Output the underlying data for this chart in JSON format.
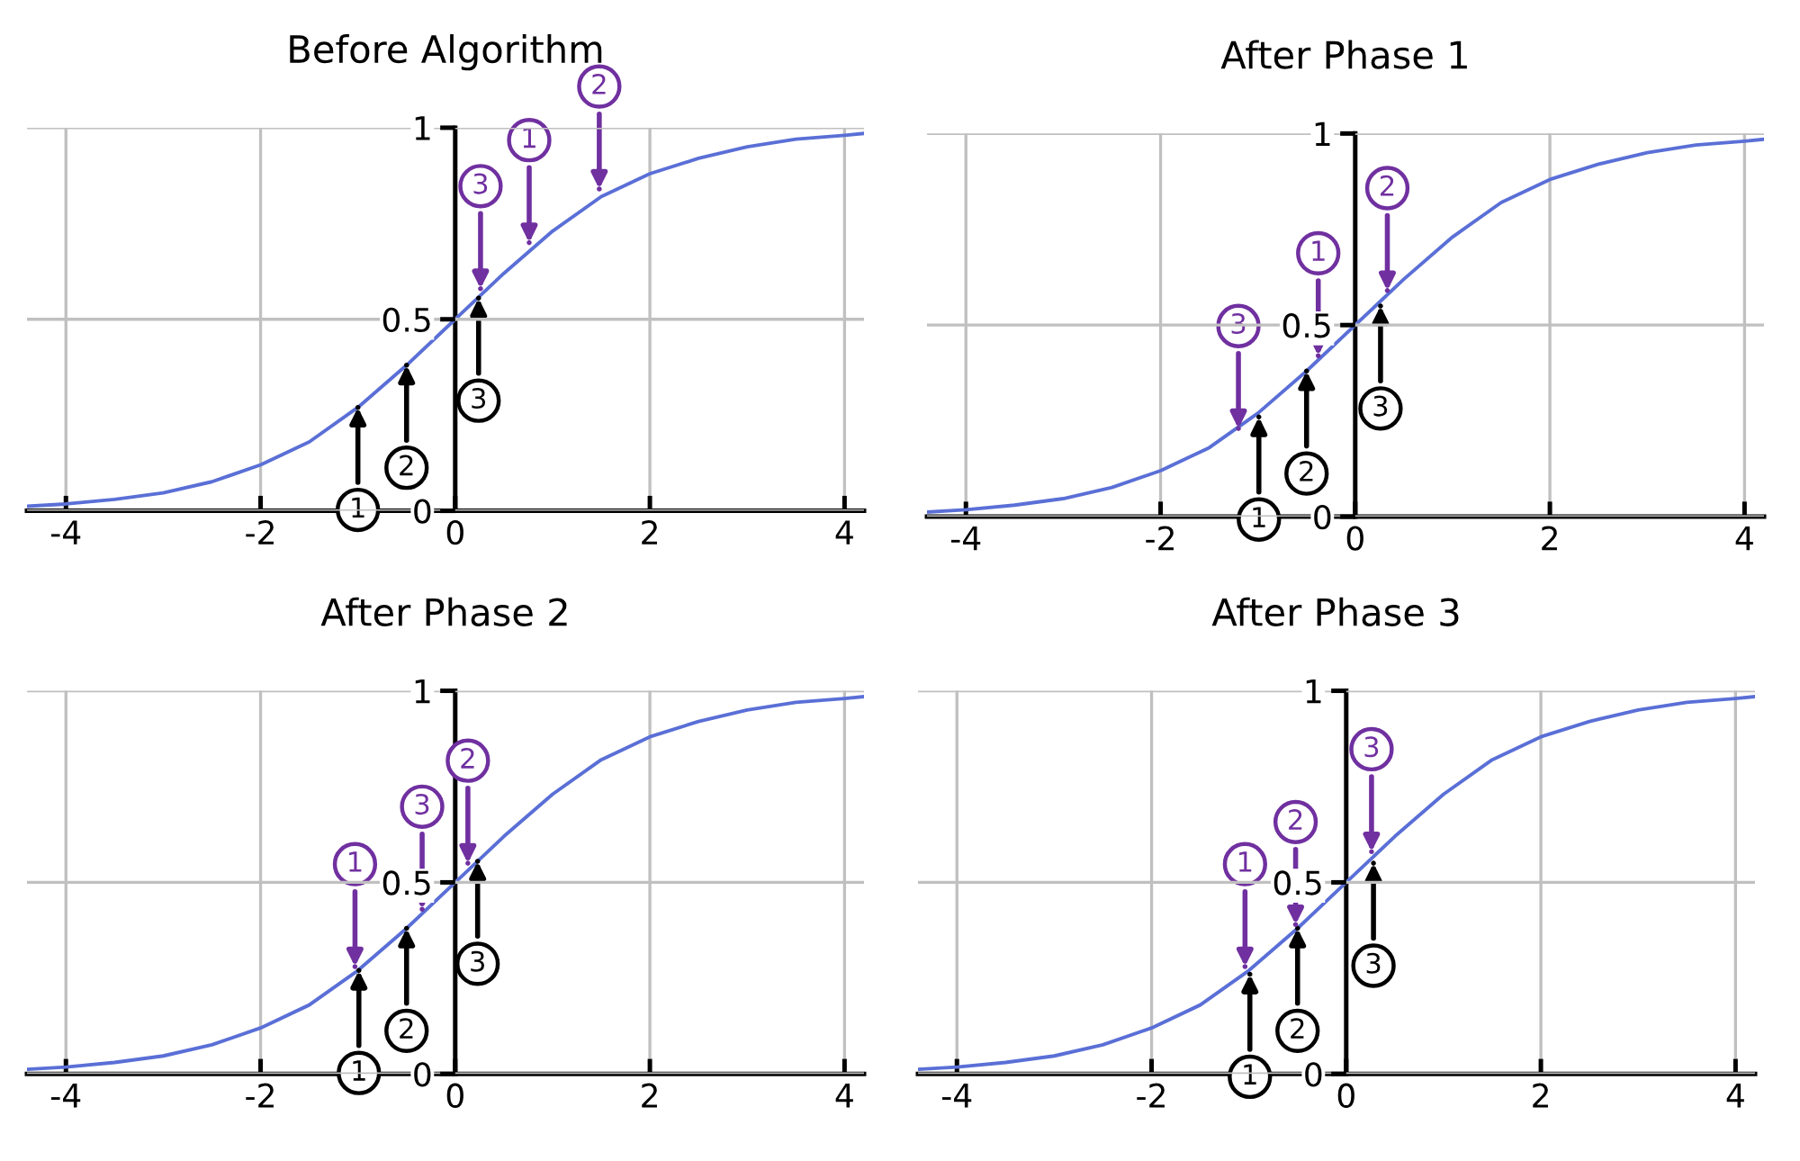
{
  "chart_data": [
    {
      "type": "line",
      "title": "Before Algorithm",
      "xlim": [
        -4.4,
        4.2
      ],
      "ylim": [
        0,
        1
      ],
      "xticks": [
        -4,
        -2,
        0,
        2,
        4
      ],
      "yticks": [
        0,
        0.5,
        1
      ],
      "grid": true,
      "series": [
        {
          "color": "#5a6fd6",
          "x": [
            -4.4,
            -4,
            -3.5,
            -3,
            -2.5,
            -2,
            -1.5,
            -1,
            -0.5,
            0,
            0.5,
            1,
            1.5,
            2,
            2.5,
            3,
            3.5,
            4,
            4.2
          ],
          "values": [
            0.012,
            0.018,
            0.03,
            0.047,
            0.076,
            0.12,
            0.18,
            0.27,
            0.38,
            0.5,
            0.62,
            0.73,
            0.82,
            0.88,
            0.92,
            0.95,
            0.97,
            0.98,
            0.985
          ]
        },
        {
          "type": "scatter",
          "color": "#000000",
          "x": [
            -1,
            -0.5,
            0.24
          ],
          "values": [
            0.27,
            0.38,
            0.555
          ]
        },
        {
          "type": "scatter",
          "color": "#7030a0",
          "x": [
            0.26,
            0.76,
            1.48
          ],
          "values": [
            0.58,
            0.7,
            0.84
          ]
        }
      ],
      "annotations": [
        {
          "text": "1",
          "x": -1,
          "y": 0.27
        },
        {
          "text": "2",
          "x": -0.5,
          "y": 0.38
        },
        {
          "text": "3",
          "x": 0.24,
          "y": 0.555
        },
        {
          "text": "3",
          "x": 0.26,
          "y": 0.58
        },
        {
          "text": "1",
          "x": 0.76,
          "y": 0.7
        },
        {
          "text": "2",
          "x": 1.48,
          "y": 0.84
        }
      ]
    },
    {
      "type": "line",
      "title": "After Phase 1",
      "xlim": [
        -4.4,
        4.2
      ],
      "ylim": [
        0,
        1
      ],
      "xticks": [
        -4,
        -2,
        0,
        2,
        4
      ],
      "yticks": [
        0,
        0.5,
        1
      ],
      "grid": true,
      "series": [
        {
          "color": "#5a6fd6",
          "x": [
            -4.4,
            -4,
            -3.5,
            -3,
            -2.5,
            -2,
            -1.5,
            -1,
            -0.5,
            0,
            0.5,
            1,
            1.5,
            2,
            2.5,
            3,
            3.5,
            4,
            4.2
          ],
          "values": [
            0.012,
            0.018,
            0.03,
            0.047,
            0.076,
            0.12,
            0.18,
            0.27,
            0.38,
            0.5,
            0.62,
            0.73,
            0.82,
            0.88,
            0.92,
            0.95,
            0.97,
            0.98,
            0.985
          ]
        },
        {
          "type": "scatter",
          "color": "#000000",
          "x": [
            -0.99,
            -0.5,
            0.26
          ],
          "values": [
            0.26,
            0.38,
            0.55
          ]
        },
        {
          "type": "scatter",
          "color": "#7030a0",
          "x": [
            -1.2,
            -0.38,
            0.33
          ],
          "values": [
            0.23,
            0.42,
            0.59
          ]
        }
      ],
      "annotations": [
        {
          "text": "1",
          "x": -0.99,
          "y": 0.26
        },
        {
          "text": "2",
          "x": -0.5,
          "y": 0.38
        },
        {
          "text": "3",
          "x": 0.26,
          "y": 0.55
        },
        {
          "text": "3",
          "x": -1.2,
          "y": 0.23
        },
        {
          "text": "1",
          "x": -0.38,
          "y": 0.42
        },
        {
          "text": "2",
          "x": 0.33,
          "y": 0.59
        }
      ]
    },
    {
      "type": "line",
      "title": "After Phase 2",
      "xlim": [
        -4.4,
        4.2
      ],
      "ylim": [
        0,
        1
      ],
      "xticks": [
        -4,
        -2,
        0,
        2,
        4
      ],
      "yticks": [
        0,
        0.5,
        1
      ],
      "grid": true,
      "series": [
        {
          "color": "#5a6fd6",
          "x": [
            -4.4,
            -4,
            -3.5,
            -3,
            -2.5,
            -2,
            -1.5,
            -1,
            -0.5,
            0,
            0.5,
            1,
            1.5,
            2,
            2.5,
            3,
            3.5,
            4,
            4.2
          ],
          "values": [
            0.012,
            0.018,
            0.03,
            0.047,
            0.076,
            0.12,
            0.18,
            0.27,
            0.38,
            0.5,
            0.62,
            0.73,
            0.82,
            0.88,
            0.92,
            0.95,
            0.97,
            0.98,
            0.985
          ]
        },
        {
          "type": "scatter",
          "color": "#000000",
          "x": [
            -0.99,
            -0.5,
            0.23
          ],
          "values": [
            0.27,
            0.38,
            0.555
          ]
        },
        {
          "type": "scatter",
          "color": "#7030a0",
          "x": [
            -1.03,
            -0.34,
            0.13
          ],
          "values": [
            0.28,
            0.43,
            0.55
          ]
        }
      ],
      "annotations": [
        {
          "text": "1",
          "x": -0.99,
          "y": 0.27
        },
        {
          "text": "2",
          "x": -0.5,
          "y": 0.38
        },
        {
          "text": "3",
          "x": 0.23,
          "y": 0.555
        },
        {
          "text": "1",
          "x": -1.03,
          "y": 0.28
        },
        {
          "text": "3",
          "x": -0.34,
          "y": 0.43
        },
        {
          "text": "2",
          "x": 0.13,
          "y": 0.55
        }
      ]
    },
    {
      "type": "line",
      "title": "After Phase 3",
      "xlim": [
        -4.4,
        4.2
      ],
      "ylim": [
        0,
        1
      ],
      "xticks": [
        -4,
        -2,
        0,
        2,
        4
      ],
      "yticks": [
        0,
        0.5,
        1
      ],
      "grid": true,
      "series": [
        {
          "color": "#5a6fd6",
          "x": [
            -4.4,
            -4,
            -3.5,
            -3,
            -2.5,
            -2,
            -1.5,
            -1,
            -0.5,
            0,
            0.5,
            1,
            1.5,
            2,
            2.5,
            3,
            3.5,
            4,
            4.2
          ],
          "values": [
            0.012,
            0.018,
            0.03,
            0.047,
            0.076,
            0.12,
            0.18,
            0.27,
            0.38,
            0.5,
            0.62,
            0.73,
            0.82,
            0.88,
            0.92,
            0.95,
            0.97,
            0.98,
            0.985
          ]
        },
        {
          "type": "scatter",
          "color": "#000000",
          "x": [
            -0.99,
            -0.5,
            0.28
          ],
          "values": [
            0.26,
            0.38,
            0.55
          ]
        },
        {
          "type": "scatter",
          "color": "#7030a0",
          "x": [
            -1.04,
            -0.52,
            0.26
          ],
          "values": [
            0.28,
            0.39,
            0.58
          ]
        }
      ],
      "annotations": [
        {
          "text": "1",
          "x": -0.99,
          "y": 0.26
        },
        {
          "text": "2",
          "x": -0.5,
          "y": 0.38
        },
        {
          "text": "3",
          "x": 0.28,
          "y": 0.55
        },
        {
          "text": "1",
          "x": -1.04,
          "y": 0.28
        },
        {
          "text": "2",
          "x": -0.52,
          "y": 0.39
        },
        {
          "text": "3",
          "x": 0.26,
          "y": 0.58
        }
      ]
    }
  ]
}
